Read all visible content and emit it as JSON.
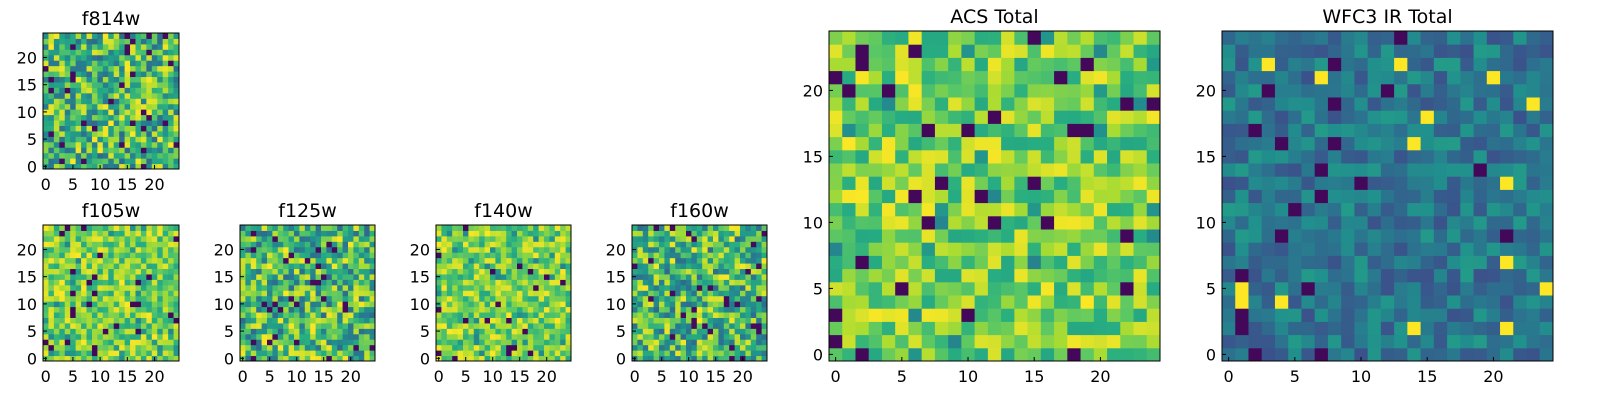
{
  "chart_data": [
    {
      "type": "heatmap",
      "title": "f814w",
      "grid_size": 25,
      "xlim": [
        0,
        24
      ],
      "ylim": [
        0,
        24
      ],
      "xticks": [
        "0",
        "5",
        "10",
        "15",
        "20"
      ],
      "yticks": [
        "0",
        "5",
        "10",
        "15",
        "20"
      ],
      "colormap": "viridis",
      "value_range": [
        0,
        1
      ],
      "style": "mixed",
      "seed": 11
    },
    {
      "type": "heatmap",
      "title": "f105w",
      "grid_size": 25,
      "xlim": [
        0,
        24
      ],
      "ylim": [
        0,
        24
      ],
      "xticks": [
        "0",
        "5",
        "10",
        "15",
        "20"
      ],
      "yticks": [
        "0",
        "5",
        "10",
        "15",
        "20"
      ],
      "colormap": "viridis",
      "value_range": [
        0,
        1
      ],
      "style": "bright",
      "seed": 23
    },
    {
      "type": "heatmap",
      "title": "f125w",
      "grid_size": 25,
      "xlim": [
        0,
        24
      ],
      "ylim": [
        0,
        24
      ],
      "xticks": [
        "0",
        "5",
        "10",
        "15",
        "20"
      ],
      "yticks": [
        "0",
        "5",
        "10",
        "15",
        "20"
      ],
      "colormap": "viridis",
      "value_range": [
        0,
        1
      ],
      "style": "mixed",
      "seed": 37
    },
    {
      "type": "heatmap",
      "title": "f140w",
      "grid_size": 25,
      "xlim": [
        0,
        24
      ],
      "ylim": [
        0,
        24
      ],
      "xticks": [
        "0",
        "5",
        "10",
        "15",
        "20"
      ],
      "yticks": [
        "0",
        "5",
        "10",
        "15",
        "20"
      ],
      "colormap": "viridis",
      "value_range": [
        0,
        1
      ],
      "style": "bright",
      "seed": 41
    },
    {
      "type": "heatmap",
      "title": "f160w",
      "grid_size": 25,
      "xlim": [
        0,
        24
      ],
      "ylim": [
        0,
        24
      ],
      "xticks": [
        "0",
        "5",
        "10",
        "15",
        "20"
      ],
      "yticks": [
        "0",
        "5",
        "10",
        "15",
        "20"
      ],
      "colormap": "viridis",
      "value_range": [
        0,
        1
      ],
      "style": "mixed",
      "seed": 53
    },
    {
      "type": "heatmap",
      "title": "ACS Total",
      "grid_size": 25,
      "xlim": [
        0,
        24
      ],
      "ylim": [
        0,
        24
      ],
      "xticks": [
        "0",
        "5",
        "10",
        "15",
        "20"
      ],
      "yticks": [
        "0",
        "5",
        "10",
        "15",
        "20"
      ],
      "colormap": "viridis",
      "value_range": [
        0,
        1
      ],
      "style": "bright",
      "seed": 67
    },
    {
      "type": "heatmap",
      "title": "WFC3 IR Total",
      "grid_size": 25,
      "xlim": [
        0,
        24
      ],
      "ylim": [
        0,
        24
      ],
      "xticks": [
        "0",
        "5",
        "10",
        "15",
        "20"
      ],
      "yticks": [
        "0",
        "5",
        "10",
        "15",
        "20"
      ],
      "colormap": "viridis",
      "value_range": [
        0,
        1
      ],
      "style": "dark",
      "seed": 79
    }
  ]
}
